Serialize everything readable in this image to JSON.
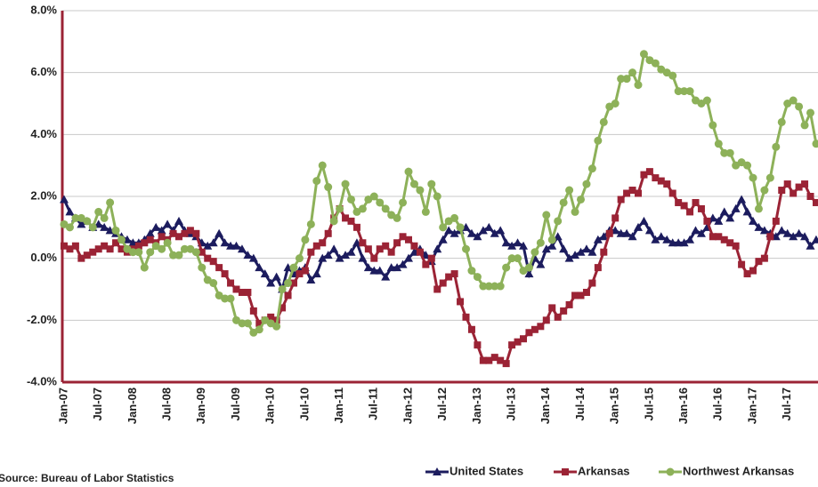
{
  "chart_data": {
    "type": "line",
    "source": "Source: Bureau of Labor Statistics",
    "categories": [
      "Jan-07",
      null,
      null,
      null,
      null,
      null,
      "Jul-07",
      null,
      null,
      null,
      null,
      null,
      "Jan-08",
      null,
      null,
      null,
      null,
      null,
      "Jul-08",
      null,
      null,
      null,
      null,
      null,
      "Jan-09",
      null,
      null,
      null,
      null,
      null,
      "Jul-09",
      null,
      null,
      null,
      null,
      null,
      "Jan-10",
      null,
      null,
      null,
      null,
      null,
      "Jul-10",
      null,
      null,
      null,
      null,
      null,
      "Jan-11",
      null,
      null,
      null,
      null,
      null,
      "Jul-11",
      null,
      null,
      null,
      null,
      null,
      "Jan-12",
      null,
      null,
      null,
      null,
      null,
      "Jul-12",
      null,
      null,
      null,
      null,
      null,
      "Jan-13",
      null,
      null,
      null,
      null,
      null,
      "Jul-13",
      null,
      null,
      null,
      null,
      null,
      "Jan-14",
      null,
      null,
      null,
      null,
      null,
      "Jul-14",
      null,
      null,
      null,
      null,
      null,
      "Jan-15",
      null,
      null,
      null,
      null,
      null,
      "Jul-15",
      null,
      null,
      null,
      null,
      null,
      "Jan-16",
      null,
      null,
      null,
      null,
      null,
      "Jul-16",
      null,
      null,
      null,
      null,
      null,
      "Jan-17",
      null,
      null,
      null,
      null,
      null,
      "Jul-17",
      null,
      null,
      null,
      null,
      null
    ],
    "series": [
      {
        "name": "United States",
        "color": "#1c1c5e",
        "marker": "triangle",
        "values": [
          1.9,
          1.5,
          1.3,
          1.1,
          1.2,
          1.0,
          1.1,
          1.0,
          0.9,
          0.8,
          0.7,
          0.6,
          0.5,
          0.5,
          0.6,
          0.8,
          1.0,
          0.9,
          1.1,
          0.9,
          1.2,
          0.9,
          0.8,
          0.7,
          0.5,
          0.4,
          0.5,
          0.8,
          0.5,
          0.4,
          0.4,
          0.3,
          0.1,
          0.0,
          -0.3,
          -0.5,
          -0.8,
          -0.6,
          -1.0,
          -0.3,
          -0.5,
          -0.4,
          -0.3,
          -0.7,
          -0.5,
          0.0,
          0.1,
          0.3,
          0.0,
          0.1,
          0.2,
          0.5,
          0.0,
          -0.3,
          -0.4,
          -0.4,
          -0.6,
          -0.3,
          -0.3,
          -0.2,
          0.0,
          0.2,
          0.3,
          0.1,
          -0.1,
          0.3,
          0.6,
          0.9,
          0.8,
          0.9,
          1.0,
          0.8,
          0.7,
          0.9,
          1.0,
          0.8,
          0.9,
          0.5,
          0.4,
          0.5,
          0.4,
          -0.5,
          0.0,
          -0.2,
          0.3,
          0.4,
          0.7,
          0.3,
          0.0,
          0.1,
          0.2,
          0.3,
          0.2,
          0.6,
          0.7,
          0.9,
          0.9,
          0.8,
          0.8,
          0.7,
          1.0,
          1.2,
          0.9,
          0.6,
          0.7,
          0.6,
          0.5,
          0.5,
          0.5,
          0.6,
          0.9,
          0.8,
          1.0,
          1.3,
          1.2,
          1.5,
          1.3,
          1.6,
          1.9,
          1.5,
          1.2,
          1.0,
          0.9,
          0.8,
          0.7,
          0.9,
          0.8,
          0.7,
          0.8,
          0.7,
          0.4,
          0.6
        ]
      },
      {
        "name": "Arkansas",
        "color": "#9b2335",
        "marker": "square",
        "values": [
          0.4,
          0.3,
          0.4,
          0.0,
          0.1,
          0.2,
          0.3,
          0.4,
          0.3,
          0.5,
          0.3,
          0.2,
          0.3,
          0.4,
          0.5,
          0.6,
          0.5,
          0.7,
          0.6,
          0.8,
          0.7,
          0.8,
          0.9,
          0.8,
          0.2,
          0.0,
          -0.1,
          -0.3,
          -0.5,
          -0.8,
          -1.0,
          -1.1,
          -1.1,
          -1.7,
          -2.1,
          -2.0,
          -1.9,
          -2.0,
          -1.6,
          -1.2,
          -0.8,
          -0.5,
          -0.4,
          0.2,
          0.4,
          0.5,
          0.8,
          1.3,
          1.6,
          1.3,
          1.2,
          1.0,
          0.5,
          0.3,
          0.0,
          0.3,
          0.4,
          0.2,
          0.5,
          0.7,
          0.6,
          0.4,
          0.2,
          -0.2,
          0.0,
          -1.0,
          -0.8,
          -0.6,
          -0.5,
          -1.4,
          -1.9,
          -2.3,
          -2.8,
          -3.3,
          -3.3,
          -3.2,
          -3.3,
          -3.4,
          -2.8,
          -2.7,
          -2.6,
          -2.4,
          -2.3,
          -2.2,
          -2.0,
          -1.6,
          -1.9,
          -1.7,
          -1.5,
          -1.2,
          -1.2,
          -1.1,
          -0.8,
          -0.3,
          0.2,
          0.8,
          1.3,
          1.9,
          2.1,
          2.2,
          2.1,
          2.7,
          2.8,
          2.6,
          2.5,
          2.4,
          2.1,
          1.8,
          1.7,
          1.5,
          1.8,
          1.6,
          1.2,
          0.7,
          0.7,
          0.6,
          0.5,
          0.4,
          -0.2,
          -0.5,
          -0.4,
          -0.1,
          0.0,
          0.7,
          1.2,
          2.2,
          2.4,
          2.1,
          2.3,
          2.4,
          2.0,
          1.8
        ]
      },
      {
        "name": "Northwest Arkansas",
        "color": "#8db159",
        "marker": "circle",
        "values": [
          1.1,
          1.0,
          1.3,
          1.3,
          1.2,
          1.0,
          1.5,
          1.3,
          1.8,
          0.9,
          0.6,
          0.3,
          0.2,
          0.2,
          -0.3,
          0.2,
          0.4,
          0.3,
          0.5,
          0.1,
          0.1,
          0.3,
          0.3,
          0.2,
          -0.3,
          -0.7,
          -0.8,
          -1.2,
          -1.3,
          -1.3,
          -2.0,
          -2.1,
          -2.1,
          -2.4,
          -2.3,
          -2.0,
          -2.1,
          -2.2,
          -1.0,
          -0.8,
          -0.3,
          0.0,
          0.6,
          1.1,
          2.5,
          3.0,
          2.3,
          1.2,
          1.6,
          2.4,
          1.9,
          1.5,
          1.6,
          1.9,
          2.0,
          1.8,
          1.6,
          1.4,
          1.3,
          1.8,
          2.8,
          2.4,
          2.2,
          1.5,
          2.4,
          2.0,
          1.0,
          1.2,
          1.3,
          1.0,
          0.3,
          -0.4,
          -0.6,
          -0.9,
          -0.9,
          -0.9,
          -0.9,
          -0.3,
          0.0,
          0.0,
          -0.4,
          -0.3,
          0.2,
          0.5,
          1.4,
          0.6,
          1.2,
          1.8,
          2.2,
          1.5,
          1.9,
          2.4,
          2.9,
          3.8,
          4.4,
          4.9,
          5.0,
          5.8,
          5.8,
          6.0,
          5.6,
          6.6,
          6.4,
          6.3,
          6.1,
          6.0,
          5.9,
          5.4,
          5.4,
          5.4,
          5.1,
          5.0,
          5.1,
          4.3,
          3.7,
          3.4,
          3.4,
          3.0,
          3.1,
          3.0,
          2.6,
          1.6,
          2.2,
          2.6,
          3.6,
          4.4,
          5.0,
          5.1,
          4.9,
          4.3,
          4.7,
          3.7
        ]
      }
    ],
    "ylim": [
      -4,
      8
    ],
    "yticks": [
      {
        "value": -4,
        "label": "-4.0%"
      },
      {
        "value": -2,
        "label": "-2.0%"
      },
      {
        "value": 0,
        "label": "0.0%"
      },
      {
        "value": 2,
        "label": "2.0%"
      },
      {
        "value": 4,
        "label": "4.0%"
      },
      {
        "value": 6,
        "label": "6.0%"
      },
      {
        "value": 8,
        "label": "8.0%"
      }
    ],
    "grid": true,
    "axis_color": "#9b2335"
  }
}
